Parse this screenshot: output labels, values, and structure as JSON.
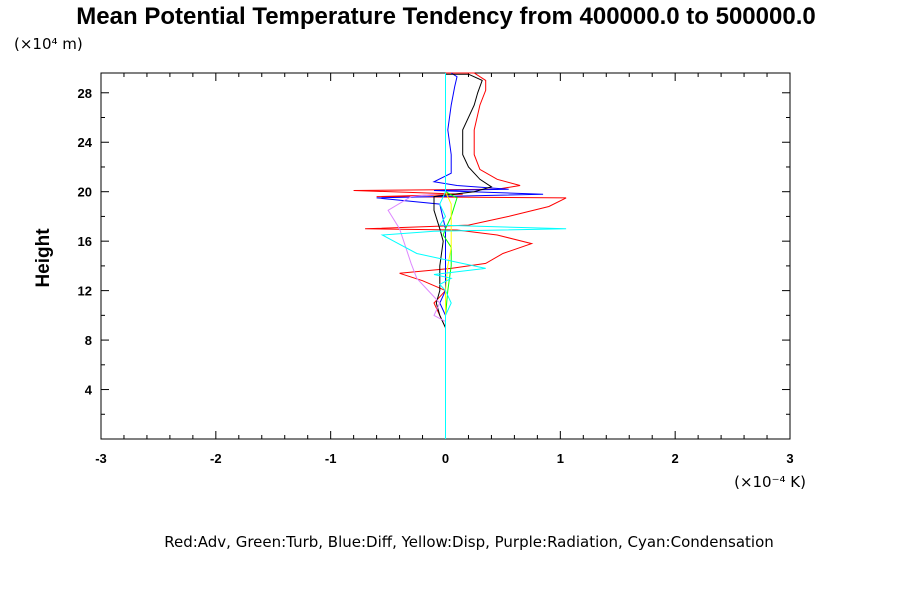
{
  "chart_data": {
    "type": "line",
    "title": "Mean Potential Temperature Tendency from 400000.0 to 500000.0",
    "ylabel": "Height",
    "xlabel": "",
    "x_unit": "(×10⁻⁴ K)",
    "y_unit": "(×10⁴ m)",
    "xlim": [
      -3,
      3
    ],
    "ylim": [
      0,
      29.6
    ],
    "xticks": [
      -3,
      -2,
      -1,
      0,
      1,
      2,
      3
    ],
    "yticks": [
      4,
      8,
      12,
      16,
      20,
      24,
      28
    ],
    "grid": false,
    "legend_text": "Red:Adv, Green:Turb, Blue:Diff, Yellow:Disp, Purple:Radiation, Cyan:Condensation",
    "series": [
      {
        "color": "#ff0000",
        "points": [
          [
            0,
            8
          ],
          [
            0,
            9
          ],
          [
            -0.05,
            10
          ],
          [
            -0.1,
            11
          ],
          [
            -0.05,
            11.5
          ],
          [
            0,
            12
          ],
          [
            -0.2,
            12.8
          ],
          [
            -0.4,
            13.4
          ],
          [
            0.05,
            13.8
          ],
          [
            0.35,
            14.2
          ],
          [
            0.5,
            15
          ],
          [
            0.75,
            15.8
          ],
          [
            0.45,
            16.5
          ],
          [
            0.1,
            16.9
          ],
          [
            -0.7,
            17
          ],
          [
            0.2,
            17.3
          ],
          [
            0.55,
            18
          ],
          [
            0.9,
            18.8
          ],
          [
            1.05,
            19.5
          ],
          [
            -0.6,
            19.6
          ],
          [
            0.15,
            19.8
          ],
          [
            -0.8,
            20.1
          ],
          [
            0.45,
            20.2
          ],
          [
            0.65,
            20.5
          ],
          [
            0.45,
            21
          ],
          [
            0.3,
            21.8
          ],
          [
            0.25,
            23
          ],
          [
            0.25,
            25
          ],
          [
            0.3,
            27
          ],
          [
            0.35,
            28.2
          ],
          [
            0.35,
            29
          ],
          [
            0.25,
            29.6
          ],
          [
            0,
            29.6
          ]
        ]
      },
      {
        "color": "#0000ff",
        "points": [
          [
            0,
            8
          ],
          [
            0,
            10
          ],
          [
            -0.05,
            11
          ],
          [
            0,
            12
          ],
          [
            0,
            15
          ],
          [
            0,
            17
          ],
          [
            -0.05,
            19
          ],
          [
            -0.6,
            19.5
          ],
          [
            0.85,
            19.8
          ],
          [
            -0.1,
            20.1
          ],
          [
            0.55,
            20.2
          ],
          [
            0.1,
            20.5
          ],
          [
            -0.1,
            20.8
          ],
          [
            0.05,
            21.5
          ],
          [
            0.05,
            23
          ],
          [
            0.02,
            25
          ],
          [
            0.05,
            27
          ],
          [
            0.08,
            28.5
          ],
          [
            0.1,
            29.3
          ],
          [
            0.05,
            29.6
          ]
        ]
      },
      {
        "color": "#000000",
        "points": [
          [
            0,
            8
          ],
          [
            0,
            9
          ],
          [
            -0.05,
            10
          ],
          [
            -0.08,
            11
          ],
          [
            -0.05,
            12
          ],
          [
            -0.05,
            14
          ],
          [
            -0.02,
            16
          ],
          [
            -0.05,
            17
          ],
          [
            -0.1,
            18.5
          ],
          [
            -0.1,
            19.6
          ],
          [
            0.25,
            20
          ],
          [
            0.4,
            20.4
          ],
          [
            0.3,
            21
          ],
          [
            0.2,
            22
          ],
          [
            0.15,
            23
          ],
          [
            0.15,
            25
          ],
          [
            0.25,
            27
          ],
          [
            0.28,
            28
          ],
          [
            0.32,
            29
          ],
          [
            0.2,
            29.5
          ],
          [
            0,
            29.5
          ]
        ]
      },
      {
        "color": "#00ff00",
        "points": [
          [
            0,
            7.7
          ],
          [
            0,
            9
          ],
          [
            0,
            10
          ],
          [
            0.02,
            12
          ],
          [
            0.05,
            14
          ],
          [
            0.05,
            15.5
          ],
          [
            -0.02,
            16.5
          ],
          [
            0,
            17
          ],
          [
            0.05,
            18
          ],
          [
            0.1,
            19.5
          ],
          [
            0,
            20
          ]
        ]
      },
      {
        "color": "#ffff00",
        "points": [
          [
            0,
            8
          ],
          [
            0,
            12
          ],
          [
            0.02,
            14
          ],
          [
            0.05,
            15.5
          ],
          [
            0.05,
            17
          ],
          [
            0.05,
            18
          ],
          [
            0.05,
            19
          ],
          [
            0,
            20
          ]
        ]
      },
      {
        "color": "#dd88ff",
        "points": [
          [
            0,
            9.5
          ],
          [
            -0.1,
            10
          ],
          [
            -0.05,
            11
          ],
          [
            -0.25,
            13
          ],
          [
            -0.3,
            14.2
          ],
          [
            -0.4,
            17
          ],
          [
            -0.5,
            18.5
          ],
          [
            -0.3,
            19.6
          ],
          [
            -0.1,
            19.8
          ]
        ]
      },
      {
        "color": "#00ffff",
        "points": [
          [
            0,
            0
          ],
          [
            0,
            9
          ],
          [
            0,
            10
          ],
          [
            0.05,
            11
          ],
          [
            0,
            12
          ],
          [
            -0.05,
            12.5
          ],
          [
            0.05,
            13
          ],
          [
            -0.1,
            13.3
          ],
          [
            0.35,
            13.8
          ],
          [
            0.1,
            14.3
          ],
          [
            -0.25,
            15
          ],
          [
            -0.45,
            16
          ],
          [
            -0.55,
            16.5
          ],
          [
            -0.1,
            16.8
          ],
          [
            1.05,
            17
          ],
          [
            -0.05,
            17.3
          ],
          [
            0,
            18
          ],
          [
            -0.05,
            19
          ],
          [
            0,
            20
          ],
          [
            0,
            22
          ],
          [
            0,
            25
          ],
          [
            0,
            29.6
          ]
        ]
      }
    ]
  }
}
